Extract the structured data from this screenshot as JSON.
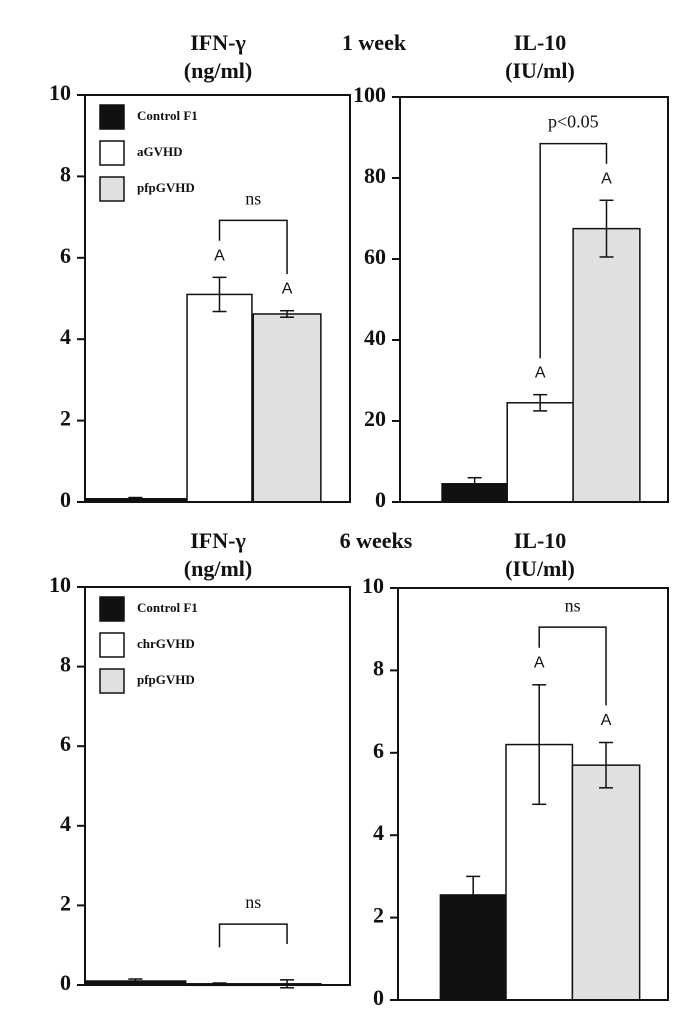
{
  "periods": [
    "1 week",
    "6 weeks"
  ],
  "chart_data": [
    {
      "type": "bar",
      "title": "IFN-γ",
      "subtitle": "(ng/ml)",
      "legend_labels": [
        "Control F1",
        "aGVHD",
        "pfpGVHD"
      ],
      "colors": [
        "#111111",
        "#ffffff",
        "#e0e0e0"
      ],
      "values": [
        0.08,
        5.1,
        4.62
      ],
      "errors": [
        0.03,
        0.42,
        0.08
      ],
      "bar_labels": [
        null,
        "A",
        "A"
      ],
      "bracket": {
        "label": "ns",
        "from": 1,
        "to": 2
      },
      "ylim": [
        0,
        10
      ],
      "yticks": [
        0,
        2,
        4,
        6,
        8,
        10
      ]
    },
    {
      "type": "bar",
      "title": "IL-10",
      "subtitle": "(IU/ml)",
      "colors": [
        "#111111",
        "#ffffff",
        "#e0e0e0"
      ],
      "values": [
        4.5,
        24.5,
        67.5
      ],
      "errors": [
        1.5,
        2,
        7
      ],
      "bar_labels": [
        null,
        "A",
        "A"
      ],
      "bracket": {
        "label": "p<0.05",
        "from": 1,
        "to": 2
      },
      "ylim": [
        0,
        100
      ],
      "yticks": [
        0,
        20,
        40,
        60,
        80,
        100
      ]
    },
    {
      "type": "bar",
      "title": "IFN-γ",
      "subtitle": "(ng/ml)",
      "legend_labels": [
        "Control F1",
        "chrGVHD",
        "pfpGVHD"
      ],
      "colors": [
        "#111111",
        "#ffffff",
        "#e0e0e0"
      ],
      "values": [
        0.1,
        0.03,
        0.03
      ],
      "errors": [
        0.05,
        0.02,
        0.1
      ],
      "bar_labels": [
        null,
        null,
        null
      ],
      "bracket": {
        "label": "ns",
        "from": 1,
        "to": 2
      },
      "ylim": [
        0,
        10
      ],
      "yticks": [
        0,
        2,
        4,
        6,
        8,
        10
      ]
    },
    {
      "type": "bar",
      "title": "IL-10",
      "subtitle": "(IU/ml)",
      "colors": [
        "#111111",
        "#ffffff",
        "#e0e0e0"
      ],
      "values": [
        2.55,
        6.2,
        5.7
      ],
      "errors": [
        0.45,
        1.45,
        0.55
      ],
      "bar_labels": [
        null,
        "A",
        "A"
      ],
      "bracket": {
        "label": "ns",
        "from": 1,
        "to": 2
      },
      "ylim": [
        0,
        10
      ],
      "yticks": [
        0,
        2,
        4,
        6,
        8,
        10
      ]
    }
  ]
}
